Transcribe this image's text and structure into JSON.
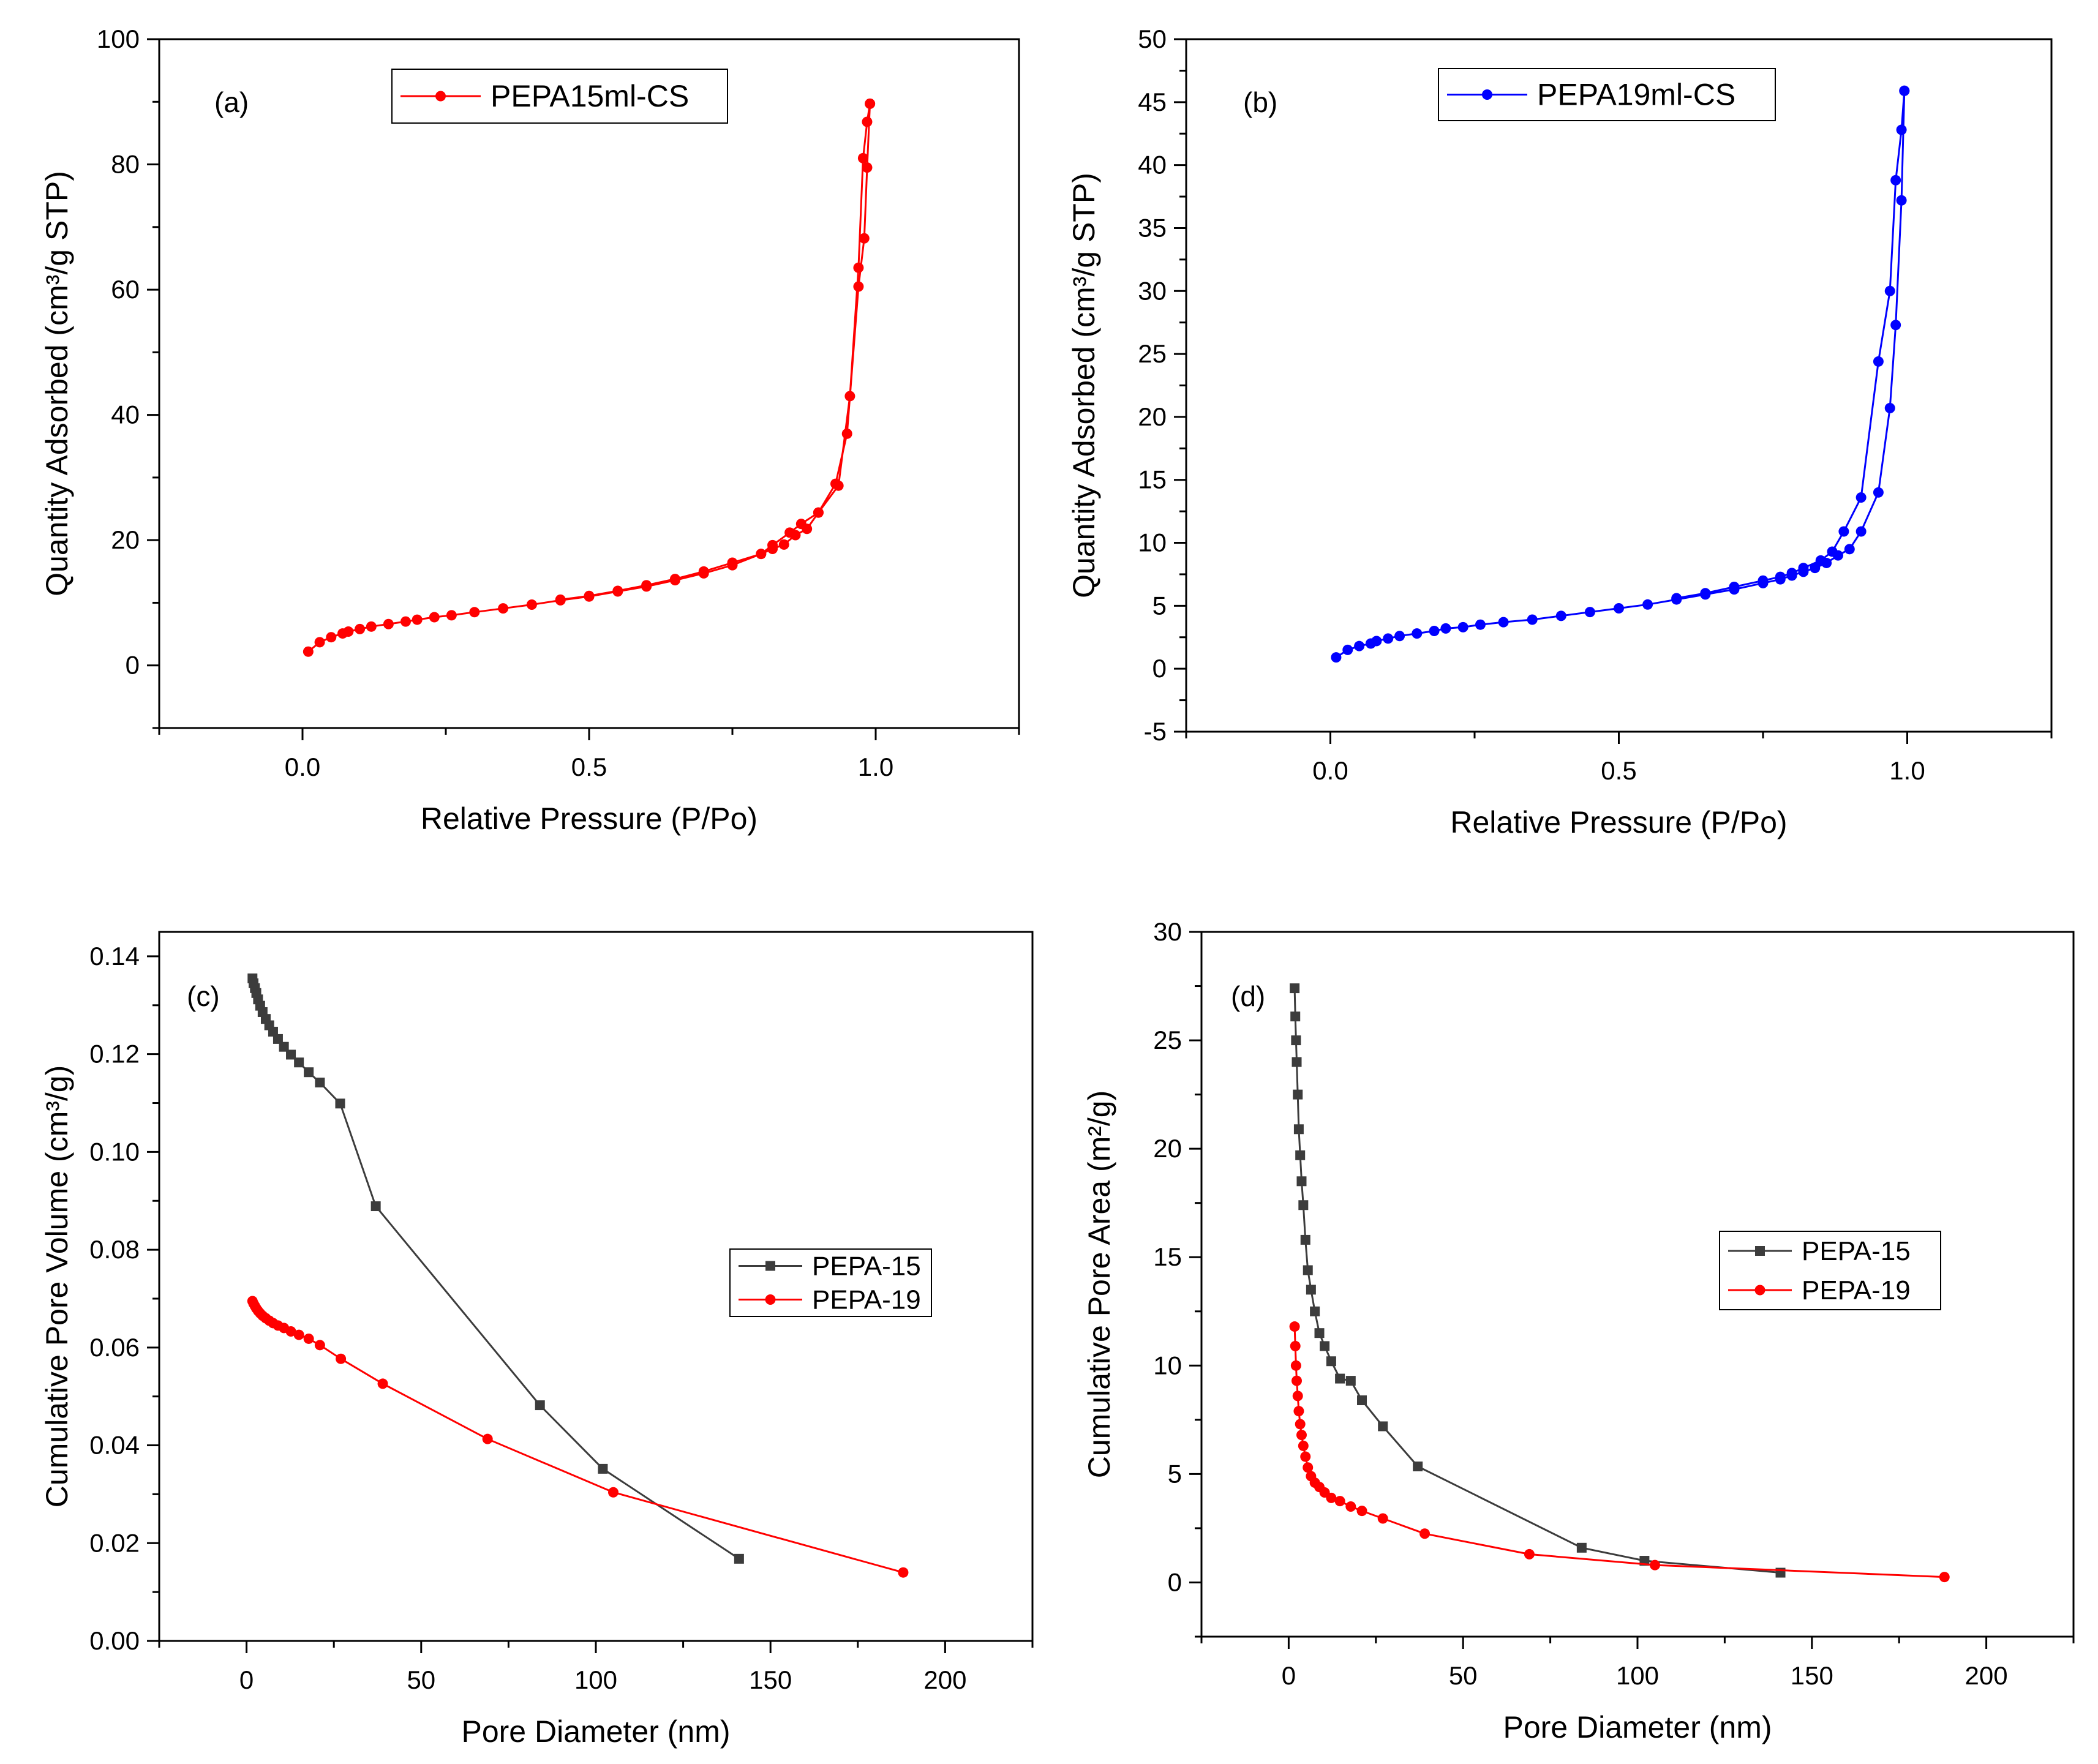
{
  "colors": {
    "red": "#ff0000",
    "blue": "#0000ff",
    "gray": "#3c3c3c",
    "axis": "#000000"
  },
  "chart_data": [
    {
      "id": "a",
      "type": "line",
      "panel_label": "(a)",
      "xlabel": "Relative Pressure (P/Po)",
      "ylabel": "Quantity Adsorbed (cm³/g STP)",
      "xlim": [
        -0.25,
        1.25
      ],
      "ylim": [
        -10,
        100
      ],
      "xticks": [
        0.0,
        0.5,
        1.0
      ],
      "xtick_labels": [
        "0.0",
        "0.5",
        "1.0"
      ],
      "yticks": [
        0,
        20,
        40,
        60,
        80,
        100
      ],
      "ytick_labels": [
        "0",
        "20",
        "40",
        "60",
        "80",
        "100"
      ],
      "legend_position": "top-center",
      "series": [
        {
          "name": "PEPA15ml-CS",
          "color": "#ff0000",
          "marker": "circle",
          "legend": true,
          "x": [
            0.01,
            0.03,
            0.05,
            0.07,
            0.08,
            0.1,
            0.12,
            0.15,
            0.18,
            0.2,
            0.23,
            0.26,
            0.3,
            0.35,
            0.4,
            0.45,
            0.5,
            0.55,
            0.6,
            0.65,
            0.7,
            0.75,
            0.8,
            0.82,
            0.85,
            0.87,
            0.9,
            0.93,
            0.95,
            0.97,
            0.98,
            0.985,
            0.99
          ],
          "y": [
            2.2,
            3.7,
            4.5,
            5.1,
            5.4,
            5.8,
            6.2,
            6.6,
            7.0,
            7.3,
            7.7,
            8.0,
            8.5,
            9.1,
            9.7,
            10.4,
            11.0,
            11.8,
            12.6,
            13.6,
            14.7,
            16.0,
            17.8,
            19.2,
            21.2,
            22.6,
            24.4,
            29.0,
            37.0,
            60.5,
            68.2,
            79.5,
            89.7
          ]
        },
        {
          "name": "desorption",
          "color": "#ff0000",
          "marker": "circle",
          "legend": false,
          "x": [
            0.99,
            0.985,
            0.978,
            0.97,
            0.955,
            0.935,
            0.9,
            0.88,
            0.86,
            0.84,
            0.82,
            0.8,
            0.75,
            0.7,
            0.65,
            0.6,
            0.55,
            0.5,
            0.45
          ],
          "y": [
            89.7,
            86.8,
            81.0,
            63.5,
            43.0,
            28.7,
            24.4,
            21.8,
            20.8,
            19.3,
            18.6,
            17.8,
            16.4,
            15.0,
            13.8,
            12.8,
            11.9,
            11.1,
            10.5
          ]
        }
      ]
    },
    {
      "id": "b",
      "type": "line",
      "panel_label": "(b)",
      "xlabel": "Relative Pressure (P/Po)",
      "ylabel": "Quantity Adsorbed (cm³/g STP)",
      "xlim": [
        -0.25,
        1.25
      ],
      "ylim": [
        -5,
        50
      ],
      "xticks": [
        0.0,
        0.5,
        1.0
      ],
      "xtick_labels": [
        "0.0",
        "0.5",
        "1.0"
      ],
      "yticks": [
        -5,
        0,
        5,
        10,
        15,
        20,
        25,
        30,
        35,
        40,
        45,
        50
      ],
      "ytick_labels": [
        "-5",
        "0",
        "5",
        "10",
        "15",
        "20",
        "25",
        "30",
        "35",
        "40",
        "45",
        "50"
      ],
      "legend_position": "top-center",
      "series": [
        {
          "name": "PEPA19ml-CS",
          "color": "#0000ff",
          "marker": "circle",
          "legend": true,
          "x": [
            0.01,
            0.03,
            0.05,
            0.07,
            0.08,
            0.1,
            0.12,
            0.15,
            0.18,
            0.2,
            0.23,
            0.26,
            0.3,
            0.35,
            0.4,
            0.45,
            0.5,
            0.55,
            0.6,
            0.65,
            0.7,
            0.75,
            0.78,
            0.8,
            0.82,
            0.84,
            0.86,
            0.88,
            0.9,
            0.92,
            0.95,
            0.97,
            0.98,
            0.99,
            0.995
          ],
          "y": [
            0.9,
            1.5,
            1.8,
            2.0,
            2.2,
            2.4,
            2.6,
            2.8,
            3.0,
            3.2,
            3.3,
            3.5,
            3.7,
            3.9,
            4.2,
            4.5,
            4.8,
            5.1,
            5.5,
            5.9,
            6.3,
            6.8,
            7.1,
            7.4,
            7.7,
            8.0,
            8.4,
            9.0,
            9.5,
            10.9,
            14.0,
            20.7,
            27.3,
            37.2,
            45.9
          ]
        },
        {
          "name": "desorption",
          "color": "#0000ff",
          "marker": "circle",
          "legend": false,
          "x": [
            0.995,
            0.99,
            0.98,
            0.97,
            0.95,
            0.92,
            0.89,
            0.87,
            0.85,
            0.82,
            0.8,
            0.78,
            0.75,
            0.7,
            0.65,
            0.6
          ],
          "y": [
            45.9,
            42.8,
            38.8,
            30.0,
            24.4,
            13.6,
            10.9,
            9.3,
            8.6,
            8.0,
            7.6,
            7.3,
            7.0,
            6.5,
            6.0,
            5.6
          ]
        }
      ]
    },
    {
      "id": "c",
      "type": "line",
      "panel_label": "(c)",
      "xlabel": "Pore Diameter (nm)",
      "ylabel": "Cumulative Pore Volume (cm³/g)",
      "xlim": [
        -25,
        225
      ],
      "ylim": [
        0,
        0.145
      ],
      "xticks": [
        0,
        50,
        100,
        150,
        200
      ],
      "xtick_labels": [
        "0",
        "50",
        "100",
        "150",
        "200"
      ],
      "yticks": [
        0,
        0.02,
        0.04,
        0.06,
        0.08,
        0.1,
        0.12,
        0.14
      ],
      "ytick_labels": [
        "0.00",
        "0.02",
        "0.04",
        "0.06",
        "0.08",
        "0.10",
        "0.12",
        "0.14"
      ],
      "legend_position": "center-right",
      "series": [
        {
          "name": "PEPA-15",
          "color": "#3c3c3c",
          "marker": "square",
          "legend": true,
          "x": [
            1.7,
            2.0,
            2.4,
            2.8,
            3.3,
            3.9,
            4.6,
            5.5,
            6.5,
            7.6,
            9.0,
            10.7,
            12.7,
            15.0,
            17.8,
            21.0,
            26.8,
            37.0,
            84.0,
            102.0,
            141.0
          ],
          "y": [
            0.1355,
            0.1345,
            0.1335,
            0.1325,
            0.1312,
            0.1299,
            0.1286,
            0.1272,
            0.1259,
            0.1246,
            0.1231,
            0.1215,
            0.1199,
            0.1183,
            0.1163,
            0.1142,
            0.1099,
            0.0889,
            0.0482,
            0.0352,
            0.0168
          ]
        },
        {
          "name": "PEPA-19",
          "color": "#ff0000",
          "marker": "circle",
          "legend": true,
          "x": [
            1.7,
            2.0,
            2.4,
            2.8,
            3.3,
            3.9,
            4.6,
            5.5,
            6.5,
            7.6,
            9.0,
            10.7,
            12.7,
            15.0,
            17.8,
            21.0,
            27.0,
            39.0,
            69.0,
            105.0,
            188.0
          ],
          "y": [
            0.0695,
            0.069,
            0.0685,
            0.068,
            0.0675,
            0.067,
            0.0665,
            0.066,
            0.0655,
            0.065,
            0.0645,
            0.064,
            0.0633,
            0.0626,
            0.0618,
            0.0605,
            0.0577,
            0.0526,
            0.0413,
            0.0304,
            0.014
          ]
        }
      ]
    },
    {
      "id": "d",
      "type": "line",
      "panel_label": "(d)",
      "xlabel": "Pore Diameter (nm)",
      "ylabel": "Cumulative Pore Area (m²/g)",
      "xlim": [
        -25,
        225
      ],
      "ylim": [
        -2.5,
        30
      ],
      "xticks": [
        0,
        50,
        100,
        150,
        200
      ],
      "xtick_labels": [
        "0",
        "50",
        "100",
        "150",
        "200"
      ],
      "yticks": [
        0,
        5,
        10,
        15,
        20,
        25,
        30
      ],
      "ytick_labels": [
        "0",
        "5",
        "10",
        "15",
        "20",
        "25",
        "30"
      ],
      "legend_position": "center-right",
      "series": [
        {
          "name": "PEPA-15",
          "color": "#3c3c3c",
          "marker": "square",
          "legend": true,
          "x": [
            1.7,
            1.9,
            2.1,
            2.3,
            2.6,
            2.9,
            3.3,
            3.7,
            4.2,
            4.8,
            5.5,
            6.4,
            7.5,
            8.8,
            10.3,
            12.2,
            14.7,
            17.8,
            21.0,
            27.0,
            37.0,
            84.0,
            102.0,
            141.0
          ],
          "y": [
            27.4,
            26.1,
            25.0,
            24.0,
            22.5,
            20.9,
            19.7,
            18.5,
            17.4,
            15.8,
            14.4,
            13.5,
            12.5,
            11.5,
            10.9,
            10.2,
            9.4,
            9.3,
            8.4,
            7.2,
            5.35,
            1.6,
            1.0,
            0.45
          ]
        },
        {
          "name": "PEPA-19",
          "color": "#ff0000",
          "marker": "circle",
          "legend": true,
          "x": [
            1.7,
            1.9,
            2.1,
            2.3,
            2.6,
            2.9,
            3.3,
            3.7,
            4.2,
            4.8,
            5.5,
            6.4,
            7.5,
            8.8,
            10.3,
            12.2,
            14.7,
            17.8,
            21.0,
            27.0,
            39.0,
            69.0,
            105.0,
            188.0
          ],
          "y": [
            11.8,
            10.9,
            10.0,
            9.3,
            8.6,
            7.9,
            7.3,
            6.8,
            6.3,
            5.8,
            5.3,
            4.9,
            4.6,
            4.4,
            4.15,
            3.9,
            3.75,
            3.5,
            3.3,
            2.95,
            2.25,
            1.3,
            0.8,
            0.25
          ]
        }
      ]
    }
  ]
}
